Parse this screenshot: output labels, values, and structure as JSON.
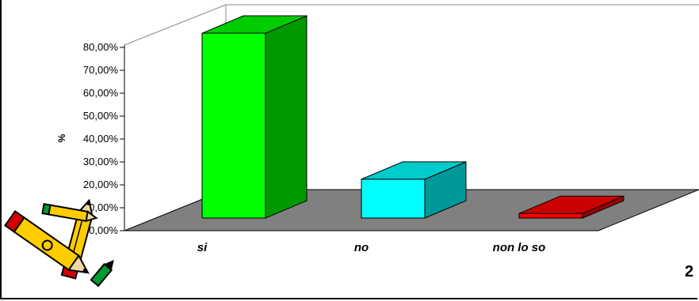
{
  "page_number": "2",
  "decorations": {
    "pencils_icon": "pencils-icon"
  },
  "chart_data": {
    "type": "bar",
    "categories": [
      "si",
      "no",
      "non lo so"
    ],
    "series": [
      {
        "values": [
          0.81,
          0.17,
          0.02
        ]
      }
    ],
    "colors": [
      "#00ff00",
      "#00ffff",
      "#ff0000"
    ],
    "side_colors": [
      "#009900",
      "#009999",
      "#990000"
    ],
    "top_colors": [
      "#00cc00",
      "#00cccc",
      "#cc0000"
    ],
    "ylabel": "%",
    "ylim": [
      0,
      0.8
    ],
    "yticks": [
      "0,00%",
      "10,00%",
      "20,00%",
      "30,00%",
      "40,00%",
      "50,00%",
      "60,00%",
      "70,00%",
      "80,00%"
    ],
    "floor_color": "#808080",
    "grid": false,
    "legend": "none"
  }
}
